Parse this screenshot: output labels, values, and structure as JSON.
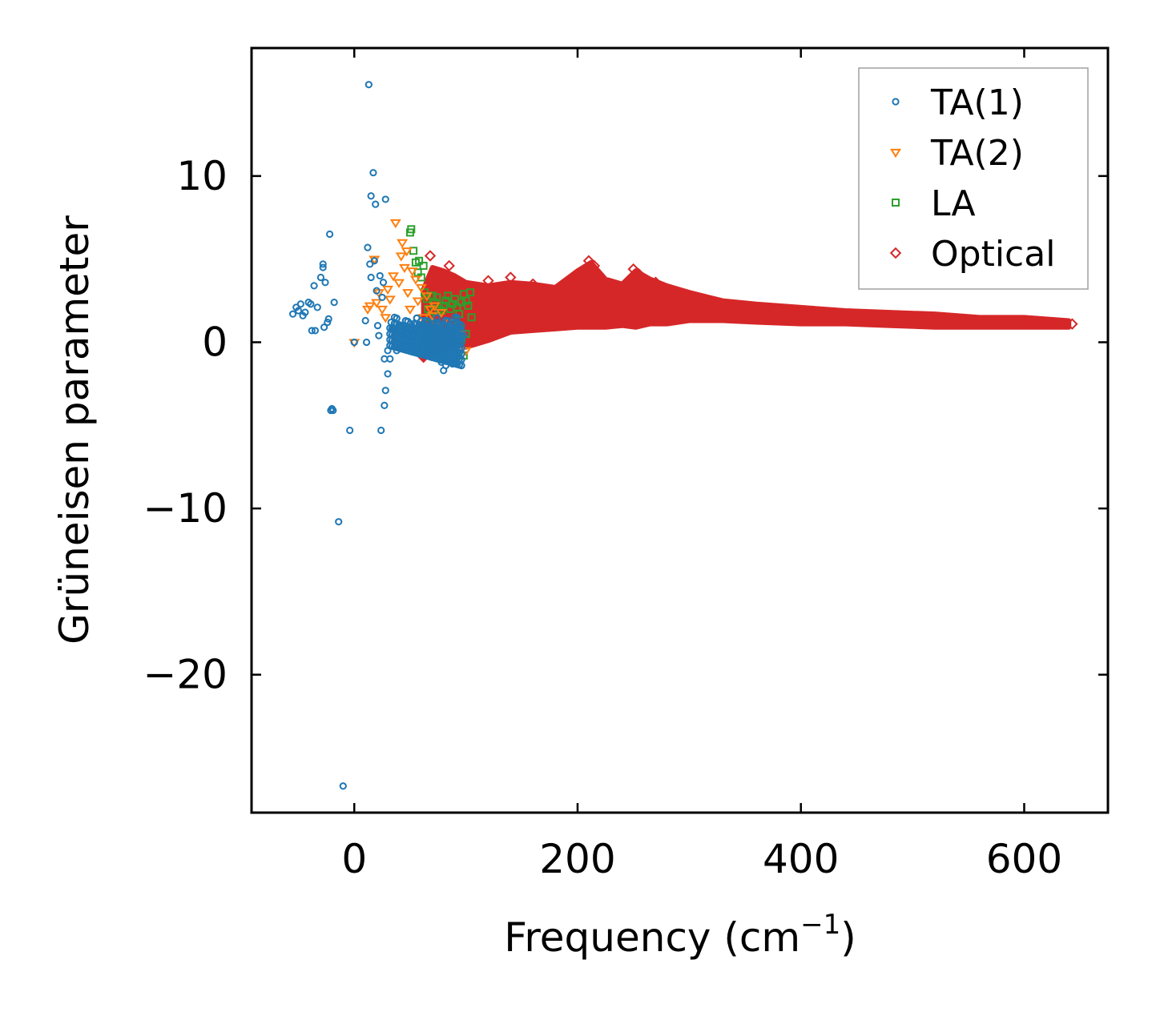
{
  "chart_data": {
    "type": "scatter",
    "title": "",
    "xlabel": "Frequency (cm",
    "xlabel_sup": "−1",
    "xlabel_end": ")",
    "ylabel": "Grüneisen parameter",
    "xlim": [
      -92,
      675
    ],
    "ylim": [
      -28.3,
      17.7
    ],
    "xticks": [
      0,
      200,
      400,
      600
    ],
    "xtick_labels": [
      "0",
      "200",
      "400",
      "600"
    ],
    "yticks": [
      10,
      0,
      -10,
      -20
    ],
    "ytick_labels": [
      "10",
      "0",
      "−10",
      "−20"
    ],
    "grid": false,
    "legend_position": "top-right",
    "series": [
      {
        "name": "TA(1)",
        "marker": "circle",
        "color": "#1f77b4",
        "points": [
          [
            -55,
            1.7
          ],
          [
            -52,
            2.1
          ],
          [
            -50,
            1.9
          ],
          [
            -48,
            2.3
          ],
          [
            -46,
            1.6
          ],
          [
            -44,
            1.8
          ],
          [
            -41,
            2.4
          ],
          [
            -39,
            2.3
          ],
          [
            -38,
            0.7
          ],
          [
            -36,
            3.4
          ],
          [
            -35,
            0.7
          ],
          [
            -33,
            2.1
          ],
          [
            -30,
            3.9
          ],
          [
            -28,
            4.7
          ],
          [
            -28,
            4.5
          ],
          [
            -27,
            0.9
          ],
          [
            -26,
            3.6
          ],
          [
            -24,
            1.2
          ],
          [
            -23,
            1.4
          ],
          [
            -22,
            6.5
          ],
          [
            -21,
            -4.1
          ],
          [
            -20,
            -4.0
          ],
          [
            -19,
            -4.1
          ],
          [
            -18,
            2.4
          ],
          [
            -14,
            -10.8
          ],
          [
            -10,
            -26.7
          ],
          [
            -4,
            -5.3
          ],
          [
            0,
            0.0
          ],
          [
            10,
            1.3
          ],
          [
            11,
            0.0
          ],
          [
            12,
            5.7
          ],
          [
            13,
            15.5
          ],
          [
            14,
            4.7
          ],
          [
            15,
            3.9
          ],
          [
            15,
            8.8
          ],
          [
            17,
            10.2
          ],
          [
            18,
            4.9
          ],
          [
            19,
            8.3
          ],
          [
            20,
            3.1
          ],
          [
            21,
            1.0
          ],
          [
            22,
            0.4
          ],
          [
            23,
            4.0
          ],
          [
            24,
            -5.3
          ],
          [
            25,
            2.7
          ],
          [
            26,
            3.6
          ],
          [
            27,
            -1.0
          ],
          [
            27,
            -3.8
          ],
          [
            28,
            8.6
          ],
          [
            28,
            -2.9
          ],
          [
            30,
            -0.5
          ],
          [
            30,
            -1.9
          ],
          [
            32,
            -1.0
          ],
          [
            33,
            1.2
          ],
          [
            35,
            0.8
          ],
          [
            36,
            1.5
          ],
          [
            38,
            -0.5
          ],
          [
            40,
            0.2
          ],
          [
            42,
            1.0
          ],
          [
            45,
            0.5
          ],
          [
            48,
            0.1
          ],
          [
            50,
            1.1
          ],
          [
            52,
            0.3
          ],
          [
            55,
            0.8
          ],
          [
            58,
            0.0
          ],
          [
            60,
            1.3
          ],
          [
            62,
            0.5
          ],
          [
            65,
            -0.2
          ],
          [
            68,
            0.9
          ],
          [
            70,
            0.4
          ],
          [
            72,
            0.2
          ],
          [
            75,
            1.2
          ],
          [
            77,
            -0.5
          ],
          [
            78,
            -1.2
          ],
          [
            80,
            -1.7
          ],
          [
            82,
            -1.4
          ],
          [
            84,
            -0.3
          ],
          [
            85,
            0.6
          ],
          [
            86,
            -1.0
          ],
          [
            88,
            -1.3
          ],
          [
            90,
            1.5
          ],
          [
            92,
            0.9
          ],
          [
            94,
            0.2
          ],
          [
            96,
            1.0
          ],
          [
            98,
            0.4
          ]
        ]
      },
      {
        "name": "TA(2)",
        "marker": "triangle-down",
        "color": "#ff7f0e",
        "points": [
          [
            0,
            0.0
          ],
          [
            12,
            2.0
          ],
          [
            14,
            2.2
          ],
          [
            18,
            5.0
          ],
          [
            20,
            2.4
          ],
          [
            22,
            3.0
          ],
          [
            25,
            2.0
          ],
          [
            28,
            1.5
          ],
          [
            30,
            3.2
          ],
          [
            32,
            2.6
          ],
          [
            35,
            4.0
          ],
          [
            37,
            7.2
          ],
          [
            40,
            3.6
          ],
          [
            42,
            5.2
          ],
          [
            43,
            6.0
          ],
          [
            45,
            4.5
          ],
          [
            47,
            5.5
          ],
          [
            48,
            3.0
          ],
          [
            50,
            2.0
          ],
          [
            52,
            4.3
          ],
          [
            55,
            3.8
          ],
          [
            57,
            2.5
          ],
          [
            60,
            3.3
          ],
          [
            62,
            1.5
          ],
          [
            65,
            2.8
          ],
          [
            68,
            2.0
          ],
          [
            70,
            1.6
          ],
          [
            72,
            2.2
          ],
          [
            75,
            1.0
          ],
          [
            78,
            1.8
          ],
          [
            80,
            0.6
          ],
          [
            85,
            1.2
          ],
          [
            90,
            0.8
          ],
          [
            95,
            0.5
          ],
          [
            100,
            -0.5
          ]
        ]
      },
      {
        "name": "LA",
        "marker": "square",
        "color": "#2ca02c",
        "points": [
          [
            50,
            6.6
          ],
          [
            51,
            6.8
          ],
          [
            53,
            5.5
          ],
          [
            55,
            4.8
          ],
          [
            57,
            4.2
          ],
          [
            58,
            4.9
          ],
          [
            60,
            3.9
          ],
          [
            62,
            4.6
          ],
          [
            63,
            3.0
          ],
          [
            65,
            2.6
          ],
          [
            66,
            2.0
          ],
          [
            68,
            1.5
          ],
          [
            70,
            2.8
          ],
          [
            72,
            2.4
          ],
          [
            74,
            2.7
          ],
          [
            76,
            2.0
          ],
          [
            78,
            1.9
          ],
          [
            80,
            2.2
          ],
          [
            82,
            2.5
          ],
          [
            84,
            2.8
          ],
          [
            86,
            2.0
          ],
          [
            88,
            2.3
          ],
          [
            90,
            2.6
          ],
          [
            92,
            2.1
          ],
          [
            94,
            1.7
          ],
          [
            96,
            2.4
          ],
          [
            98,
            2.9
          ],
          [
            100,
            2.5
          ],
          [
            102,
            2.2
          ],
          [
            104,
            3.0
          ],
          [
            105,
            1.5
          ],
          [
            100,
            0.5
          ],
          [
            98,
            -0.8
          ],
          [
            96,
            0.2
          ],
          [
            94,
            1.0
          ],
          [
            90,
            0.3
          ],
          [
            60,
            -0.5
          ],
          [
            55,
            -0.3
          ],
          [
            52,
            0.4
          ]
        ]
      },
      {
        "name": "Optical",
        "marker": "diamond",
        "color": "#d62728",
        "envelope": {
          "x": [
            62,
            70,
            80,
            90,
            100,
            120,
            140,
            160,
            180,
            200,
            212,
            225,
            240,
            252,
            265,
            280,
            300,
            330,
            360,
            400,
            440,
            480,
            520,
            560,
            600,
            640
          ],
          "upper": [
            3.2,
            4.5,
            4.3,
            4.0,
            3.6,
            3.4,
            3.6,
            3.5,
            3.3,
            4.3,
            4.8,
            3.8,
            3.5,
            4.3,
            3.8,
            3.4,
            3.0,
            2.5,
            2.3,
            2.1,
            1.9,
            1.8,
            1.7,
            1.5,
            1.5,
            1.3
          ],
          "lower": [
            -1.0,
            -0.7,
            -0.5,
            -0.1,
            -0.3,
            0.1,
            0.6,
            0.7,
            0.8,
            0.9,
            0.9,
            0.9,
            1.0,
            0.9,
            1.1,
            1.1,
            1.3,
            1.3,
            1.2,
            1.1,
            1.1,
            1.0,
            0.9,
            0.9,
            0.9,
            0.9
          ]
        },
        "points": [
          [
            62,
            -0.9
          ],
          [
            68,
            5.2
          ],
          [
            75,
            3.6
          ],
          [
            85,
            4.6
          ],
          [
            120,
            3.7
          ],
          [
            140,
            3.9
          ],
          [
            160,
            3.5
          ],
          [
            210,
            4.9
          ],
          [
            215,
            4.6
          ],
          [
            250,
            4.4
          ],
          [
            255,
            4.1
          ],
          [
            270,
            3.6
          ],
          [
            643,
            1.1
          ]
        ]
      }
    ]
  }
}
